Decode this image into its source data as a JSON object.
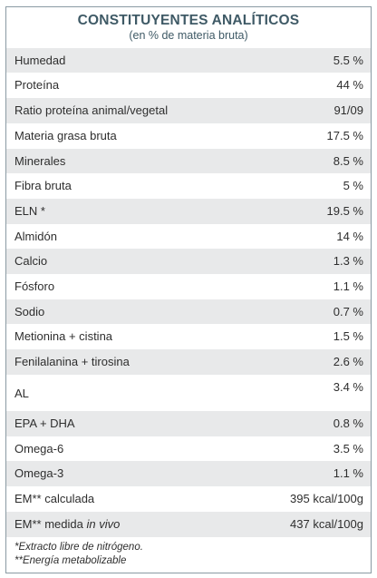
{
  "header": {
    "title": "CONSTITUYENTES ANALÍTICOS",
    "subtitle": "(en % de materia bruta)"
  },
  "rows": [
    {
      "label": "Humedad",
      "value": "5.5 %"
    },
    {
      "label": "Proteína",
      "value": "44 %"
    },
    {
      "label": "Ratio proteína animal/vegetal",
      "value": "91/09"
    },
    {
      "label": "Materia grasa bruta",
      "value": "17.5 %"
    },
    {
      "label": "Minerales",
      "value": "8.5 %"
    },
    {
      "label": "Fibra bruta",
      "value": "5 %"
    },
    {
      "label": "ELN *",
      "value": "19.5 %"
    },
    {
      "label": "Almidón",
      "value": "14 %"
    },
    {
      "label": "Calcio",
      "value": "1.3 %"
    },
    {
      "label": "Fósforo",
      "value": "1.1 %"
    },
    {
      "label": "Sodio",
      "value": "0.7 %"
    },
    {
      "label": "Metionina + cistina",
      "value": "1.5 %"
    },
    {
      "label": "Fenilalanina + tirosina",
      "value": "2.6 %"
    },
    {
      "label": "AL",
      "value": "3.4 %"
    },
    {
      "label": "EPA + DHA",
      "value": "0.8 %"
    },
    {
      "label": "Omega-6",
      "value": "3.5 %"
    },
    {
      "label": "Omega-3",
      "value": "1.1 %"
    },
    {
      "label": "EM** calculada",
      "value": "395 kcal/100g"
    },
    {
      "label_prefix": "EM** medida ",
      "label_italic": "in vivo",
      "value": "437 kcal/100g"
    }
  ],
  "footnotes": {
    "eln": "*Extracto libre de nitrógeno.",
    "em": "**Energía metabolizable"
  }
}
